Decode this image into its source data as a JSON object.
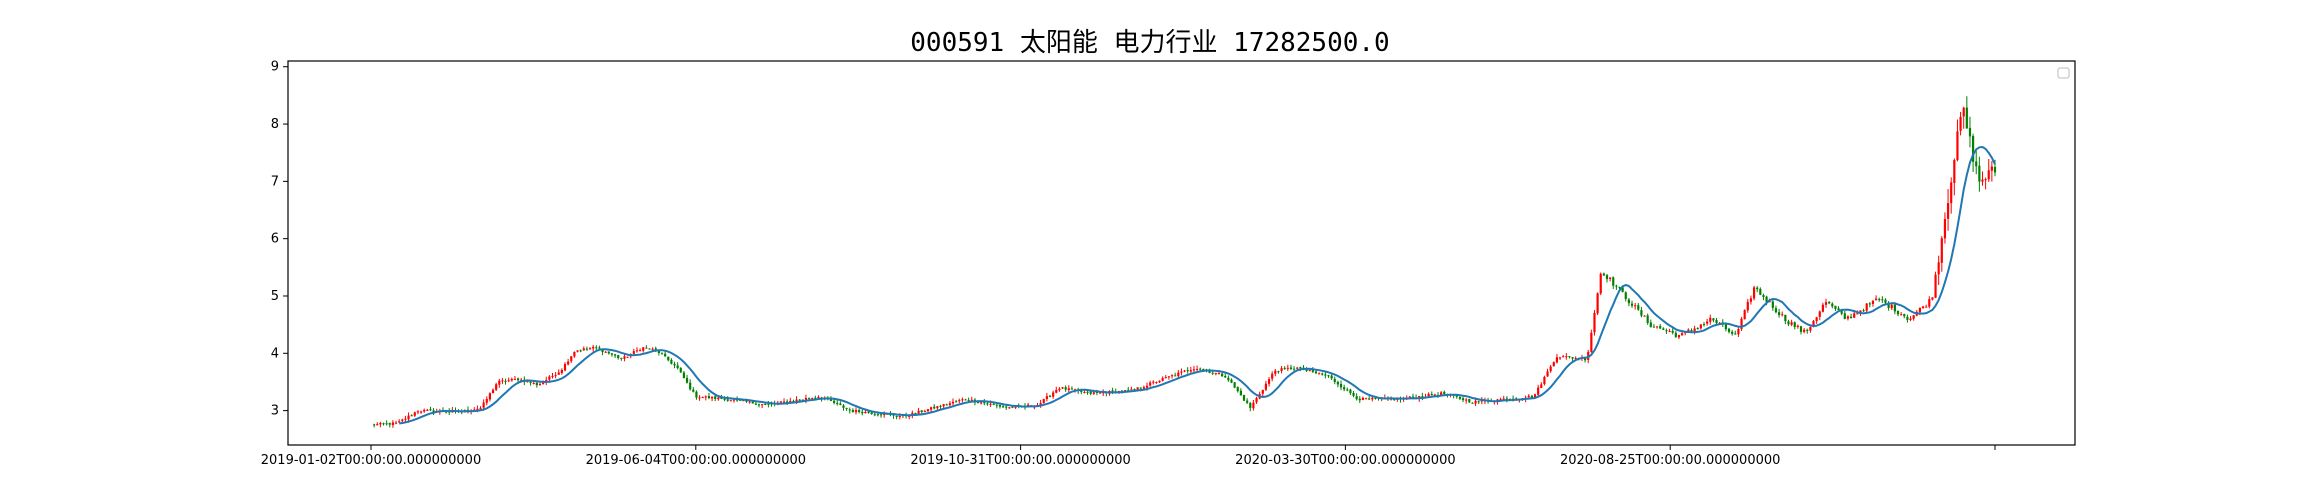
{
  "chart_data": {
    "type": "candlestick",
    "title": "000591 太阳能 电力行业 17282500.0",
    "xlabel": "",
    "ylabel": "",
    "grid": false,
    "legend": "top-right (empty)",
    "x_range": [
      "2019-01-02",
      "2021-03-08"
    ],
    "ylim": [
      2.4,
      9.1
    ],
    "yticks": [
      3,
      4,
      5,
      6,
      7,
      8,
      9
    ],
    "xtick_labels": [
      "2019-01-02T00:00:00.000000000",
      "2019-06-04T00:00:00.000000000",
      "2019-10-31T00:00:00.000000000",
      "2020-03-30T00:00:00.000000000",
      "2020-08-25T00:00:00.000000000",
      ""
    ],
    "colors": {
      "up": "#ff0000",
      "down": "#008000",
      "ma": "#1f77b4",
      "axis": "#000000"
    },
    "price_path": [
      [
        "2019-01-02",
        2.75
      ],
      [
        "2019-01-15",
        2.78
      ],
      [
        "2019-01-25",
        3.0
      ],
      [
        "2019-02-15",
        2.98
      ],
      [
        "2019-02-25",
        3.05
      ],
      [
        "2019-03-05",
        3.5
      ],
      [
        "2019-03-15",
        3.55
      ],
      [
        "2019-03-25",
        3.45
      ],
      [
        "2019-04-05",
        3.7
      ],
      [
        "2019-04-12",
        4.05
      ],
      [
        "2019-04-22",
        4.1
      ],
      [
        "2019-05-05",
        3.9
      ],
      [
        "2019-05-15",
        4.1
      ],
      [
        "2019-05-22",
        4.05
      ],
      [
        "2019-06-01",
        3.75
      ],
      [
        "2019-06-10",
        3.25
      ],
      [
        "2019-06-25",
        3.2
      ],
      [
        "2019-07-15",
        3.1
      ],
      [
        "2019-08-10",
        3.25
      ],
      [
        "2019-08-25",
        3.0
      ],
      [
        "2019-09-20",
        2.9
      ],
      [
        "2019-10-05",
        3.05
      ],
      [
        "2019-10-20",
        3.2
      ],
      [
        "2019-11-10",
        3.05
      ],
      [
        "2019-11-25",
        3.1
      ],
      [
        "2019-12-05",
        3.4
      ],
      [
        "2019-12-20",
        3.3
      ],
      [
        "2020-01-10",
        3.35
      ],
      [
        "2020-01-25",
        3.55
      ],
      [
        "2020-02-10",
        3.75
      ],
      [
        "2020-02-25",
        3.6
      ],
      [
        "2020-03-08",
        3.05
      ],
      [
        "2020-03-20",
        3.7
      ],
      [
        "2020-03-30",
        3.75
      ],
      [
        "2020-04-15",
        3.6
      ],
      [
        "2020-04-30",
        3.2
      ],
      [
        "2020-05-20",
        3.2
      ],
      [
        "2020-06-10",
        3.3
      ],
      [
        "2020-06-25",
        3.15
      ],
      [
        "2020-07-10",
        3.2
      ],
      [
        "2020-07-25",
        3.25
      ],
      [
        "2020-08-05",
        3.95
      ],
      [
        "2020-08-20",
        3.9
      ],
      [
        "2020-08-27",
        5.45
      ],
      [
        "2020-09-05",
        5.1
      ],
      [
        "2020-09-20",
        4.5
      ],
      [
        "2020-10-05",
        4.3
      ],
      [
        "2020-10-20",
        4.6
      ],
      [
        "2020-11-01",
        4.3
      ],
      [
        "2020-11-10",
        5.15
      ],
      [
        "2020-11-25",
        4.6
      ],
      [
        "2020-12-05",
        4.35
      ],
      [
        "2020-12-15",
        4.9
      ],
      [
        "2020-12-25",
        4.6
      ],
      [
        "2021-01-10",
        4.95
      ],
      [
        "2021-01-25",
        4.6
      ],
      [
        "2021-02-05",
        4.95
      ],
      [
        "2021-02-12",
        6.5
      ],
      [
        "2021-02-20",
        8.3
      ],
      [
        "2021-02-28",
        7.0
      ],
      [
        "2021-03-08",
        7.2
      ]
    ]
  }
}
